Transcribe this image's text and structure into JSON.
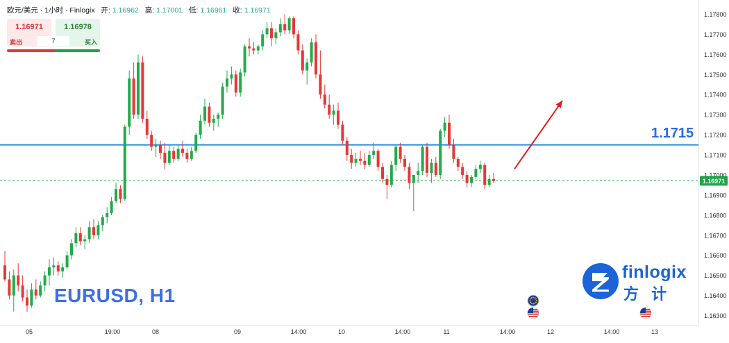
{
  "header": {
    "title": "欧元/美元 · 1小时 · Finlogix",
    "open_label": "开:",
    "open": "1.16962",
    "high_label": "高:",
    "high": "1.17001",
    "low_label": "低:",
    "low": "1.16961",
    "close_label": "收:",
    "close": "1.16971"
  },
  "trade_panel": {
    "sell_price": "1.16971",
    "buy_price": "1.16978",
    "sell_label": "卖出",
    "buy_label": "买入",
    "spread": "7"
  },
  "symbol_label": "EURUSD, H1",
  "level_label": "1.1715",
  "brand": {
    "name": "finlogix",
    "name_cn": "方 计"
  },
  "colors": {
    "up": "#22ab4a",
    "down": "#e53935",
    "level_line": "#2f8ae6",
    "arrow": "#e31b1b",
    "current_price": "#1fa34a",
    "axis_text": "#333333"
  },
  "icons": [
    "eu-flag-icon",
    "us-flag-icon",
    "us-flag-icon"
  ],
  "chart_data": {
    "type": "candlestick",
    "timeframe": "H1",
    "ylim": [
      1.1625,
      1.1785
    ],
    "y_ticks": [
      "1.17800",
      "1.17700",
      "1.17600",
      "1.17500",
      "1.17400",
      "1.17300",
      "1.17200",
      "1.17100",
      "1.17000",
      "1.16900",
      "1.16800",
      "1.16700",
      "1.16600",
      "1.16500",
      "1.16400",
      "1.16300"
    ],
    "x_ticks": [
      "05",
      "19:00",
      "08",
      "09",
      "14:00",
      "10",
      "14:00",
      "11",
      "14:00",
      "12",
      "14:00",
      "13"
    ],
    "current_price": 1.16971,
    "current_price_label": "1.16971",
    "horizontal_level": 1.1715,
    "forecast_arrow": {
      "from_price": 1.1703,
      "to_price": 1.1737
    },
    "candles": [
      [
        1.1655,
        1.1662,
        1.1647,
        1.1648
      ],
      [
        1.1648,
        1.1652,
        1.1638,
        1.164
      ],
      [
        1.164,
        1.1653,
        1.1632,
        1.165
      ],
      [
        1.165,
        1.1656,
        1.1642,
        1.1645
      ],
      [
        1.1645,
        1.165,
        1.1637,
        1.1639
      ],
      [
        1.1639,
        1.1643,
        1.1632,
        1.1635
      ],
      [
        1.1635,
        1.1646,
        1.1634,
        1.1643
      ],
      [
        1.1643,
        1.1648,
        1.1638,
        1.164
      ],
      [
        1.164,
        1.1647,
        1.1639,
        1.1645
      ],
      [
        1.1645,
        1.1652,
        1.1642,
        1.165
      ],
      [
        1.165,
        1.1658,
        1.1645,
        1.1654
      ],
      [
        1.1654,
        1.1659,
        1.165,
        1.1655
      ],
      [
        1.1655,
        1.1657,
        1.165,
        1.1652
      ],
      [
        1.1652,
        1.1656,
        1.1649,
        1.1654
      ],
      [
        1.1654,
        1.1662,
        1.1653,
        1.166
      ],
      [
        1.166,
        1.1668,
        1.1658,
        1.1666
      ],
      [
        1.1666,
        1.1674,
        1.1664,
        1.1671
      ],
      [
        1.1671,
        1.1674,
        1.1665,
        1.1667
      ],
      [
        1.1667,
        1.167,
        1.1663,
        1.1668
      ],
      [
        1.1668,
        1.1677,
        1.1666,
        1.1674
      ],
      [
        1.1674,
        1.1678,
        1.1668,
        1.167
      ],
      [
        1.167,
        1.1677,
        1.1668,
        1.1675
      ],
      [
        1.1675,
        1.168,
        1.1672,
        1.1679
      ],
      [
        1.1679,
        1.1684,
        1.1676,
        1.1681
      ],
      [
        1.1681,
        1.1689,
        1.168,
        1.1687
      ],
      [
        1.1687,
        1.1696,
        1.1686,
        1.1693
      ],
      [
        1.1693,
        1.1695,
        1.1686,
        1.1688
      ],
      [
        1.1688,
        1.1725,
        1.1687,
        1.1724
      ],
      [
        1.1724,
        1.1752,
        1.172,
        1.1748
      ],
      [
        1.1748,
        1.1756,
        1.1728,
        1.173
      ],
      [
        1.173,
        1.176,
        1.1728,
        1.1756
      ],
      [
        1.1756,
        1.1759,
        1.1726,
        1.1728
      ],
      [
        1.1728,
        1.1732,
        1.1718,
        1.172
      ],
      [
        1.172,
        1.1722,
        1.1712,
        1.1714
      ],
      [
        1.1714,
        1.1718,
        1.1709,
        1.1715
      ],
      [
        1.1715,
        1.1717,
        1.1708,
        1.1711
      ],
      [
        1.1711,
        1.1716,
        1.1703,
        1.1706
      ],
      [
        1.1706,
        1.1715,
        1.1705,
        1.1712
      ],
      [
        1.1712,
        1.1714,
        1.1706,
        1.1708
      ],
      [
        1.1708,
        1.1715,
        1.1707,
        1.1713
      ],
      [
        1.1713,
        1.1717,
        1.1709,
        1.1711
      ],
      [
        1.1711,
        1.1713,
        1.1706,
        1.1708
      ],
      [
        1.1708,
        1.1714,
        1.1707,
        1.1712
      ],
      [
        1.1712,
        1.1721,
        1.1711,
        1.172
      ],
      [
        1.172,
        1.173,
        1.1718,
        1.1727
      ],
      [
        1.1727,
        1.1738,
        1.1725,
        1.1734
      ],
      [
        1.1734,
        1.1736,
        1.1724,
        1.1726
      ],
      [
        1.1726,
        1.173,
        1.1722,
        1.1728
      ],
      [
        1.1728,
        1.1731,
        1.1724,
        1.173
      ],
      [
        1.173,
        1.1746,
        1.1728,
        1.1744
      ],
      [
        1.1744,
        1.1752,
        1.1741,
        1.1748
      ],
      [
        1.1748,
        1.1754,
        1.1745,
        1.175
      ],
      [
        1.175,
        1.1752,
        1.1739,
        1.1741
      ],
      [
        1.1741,
        1.1753,
        1.1739,
        1.1751
      ],
      [
        1.1751,
        1.1765,
        1.1749,
        1.1764
      ],
      [
        1.1764,
        1.1768,
        1.1759,
        1.1763
      ],
      [
        1.1763,
        1.1766,
        1.176,
        1.1762
      ],
      [
        1.1762,
        1.1765,
        1.176,
        1.1764
      ],
      [
        1.1764,
        1.1772,
        1.1762,
        1.177
      ],
      [
        1.177,
        1.1776,
        1.1768,
        1.1773
      ],
      [
        1.1773,
        1.1776,
        1.1764,
        1.1768
      ],
      [
        1.1768,
        1.1773,
        1.1765,
        1.1771
      ],
      [
        1.1771,
        1.1778,
        1.1769,
        1.1775
      ],
      [
        1.1775,
        1.178,
        1.177,
        1.1772
      ],
      [
        1.1772,
        1.1779,
        1.177,
        1.1778
      ],
      [
        1.1778,
        1.1779,
        1.1768,
        1.177
      ],
      [
        1.177,
        1.1772,
        1.176,
        1.1762
      ],
      [
        1.1762,
        1.1765,
        1.175,
        1.1752
      ],
      [
        1.1752,
        1.1758,
        1.1745,
        1.1756
      ],
      [
        1.1756,
        1.1768,
        1.1754,
        1.1766
      ],
      [
        1.1766,
        1.177,
        1.1748,
        1.175
      ],
      [
        1.175,
        1.1762,
        1.1738,
        1.174
      ],
      [
        1.174,
        1.1745,
        1.1733,
        1.1735
      ],
      [
        1.1735,
        1.174,
        1.1728,
        1.173
      ],
      [
        1.173,
        1.1735,
        1.1725,
        1.1732
      ],
      [
        1.1732,
        1.1736,
        1.1723,
        1.1725
      ],
      [
        1.1725,
        1.1727,
        1.1715,
        1.1717
      ],
      [
        1.1717,
        1.1719,
        1.1707,
        1.171
      ],
      [
        1.171,
        1.1713,
        1.1703,
        1.1706
      ],
      [
        1.1706,
        1.1711,
        1.1704,
        1.1708
      ],
      [
        1.1708,
        1.1712,
        1.1705,
        1.1707
      ],
      [
        1.1707,
        1.1711,
        1.1703,
        1.1705
      ],
      [
        1.1705,
        1.1712,
        1.1704,
        1.171
      ],
      [
        1.171,
        1.1716,
        1.1708,
        1.1712
      ],
      [
        1.1712,
        1.1713,
        1.1702,
        1.1704
      ],
      [
        1.1704,
        1.1706,
        1.1696,
        1.1698
      ],
      [
        1.1698,
        1.17,
        1.1688,
        1.1695
      ],
      [
        1.1695,
        1.1707,
        1.1694,
        1.1705
      ],
      [
        1.1705,
        1.1715,
        1.1702,
        1.1714
      ],
      [
        1.1714,
        1.1716,
        1.1706,
        1.1708
      ],
      [
        1.1708,
        1.171,
        1.1702,
        1.1704
      ],
      [
        1.1704,
        1.1706,
        1.1693,
        1.1696
      ],
      [
        1.1696,
        1.17,
        1.1682,
        1.17
      ],
      [
        1.17,
        1.1706,
        1.1696,
        1.1702
      ],
      [
        1.1702,
        1.1715,
        1.17,
        1.1714
      ],
      [
        1.1714,
        1.1716,
        1.1699,
        1.1701
      ],
      [
        1.1701,
        1.1708,
        1.1696,
        1.1706
      ],
      [
        1.1706,
        1.1709,
        1.1699,
        1.17
      ],
      [
        1.17,
        1.1723,
        1.1698,
        1.1722
      ],
      [
        1.1722,
        1.1729,
        1.1719,
        1.1726
      ],
      [
        1.1726,
        1.173,
        1.1713,
        1.1715
      ],
      [
        1.1715,
        1.1718,
        1.1706,
        1.1708
      ],
      [
        1.1708,
        1.1709,
        1.1702,
        1.1704
      ],
      [
        1.1704,
        1.1706,
        1.1698,
        1.17
      ],
      [
        1.17,
        1.1702,
        1.1694,
        1.1696
      ],
      [
        1.1696,
        1.17,
        1.1694,
        1.1699
      ],
      [
        1.1699,
        1.1705,
        1.1698,
        1.1703
      ],
      [
        1.1703,
        1.1707,
        1.1701,
        1.1705
      ],
      [
        1.1705,
        1.1706,
        1.1693,
        1.1695
      ],
      [
        1.1695,
        1.17,
        1.1694,
        1.1698
      ],
      [
        1.1698,
        1.1701,
        1.1696,
        1.1697
      ]
    ]
  }
}
